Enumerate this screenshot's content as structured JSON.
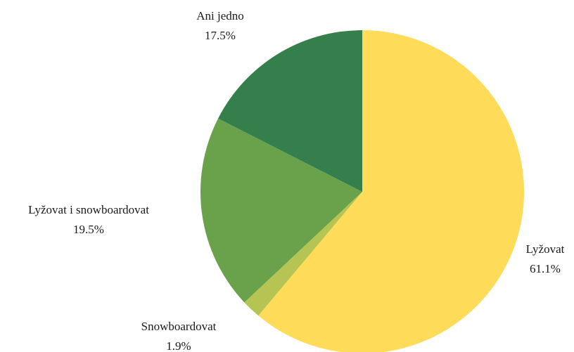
{
  "chart_data": {
    "type": "pie",
    "slices": [
      {
        "label": "Lyžovat",
        "value": 61.1,
        "value_label": "61.1%",
        "color": "#fedc5a"
      },
      {
        "label": "Snowboardovat",
        "value": 1.9,
        "value_label": "1.9%",
        "color": "#b5c452"
      },
      {
        "label": "Lyžovat i snowboardovat",
        "value": 19.5,
        "value_label": "19.5%",
        "color": "#6aa24b"
      },
      {
        "label": "Ani jedno",
        "value": 17.5,
        "value_label": "17.5%",
        "color": "#347f4c"
      }
    ],
    "start_angle": "top",
    "direction": "clockwise",
    "legend": "none"
  }
}
